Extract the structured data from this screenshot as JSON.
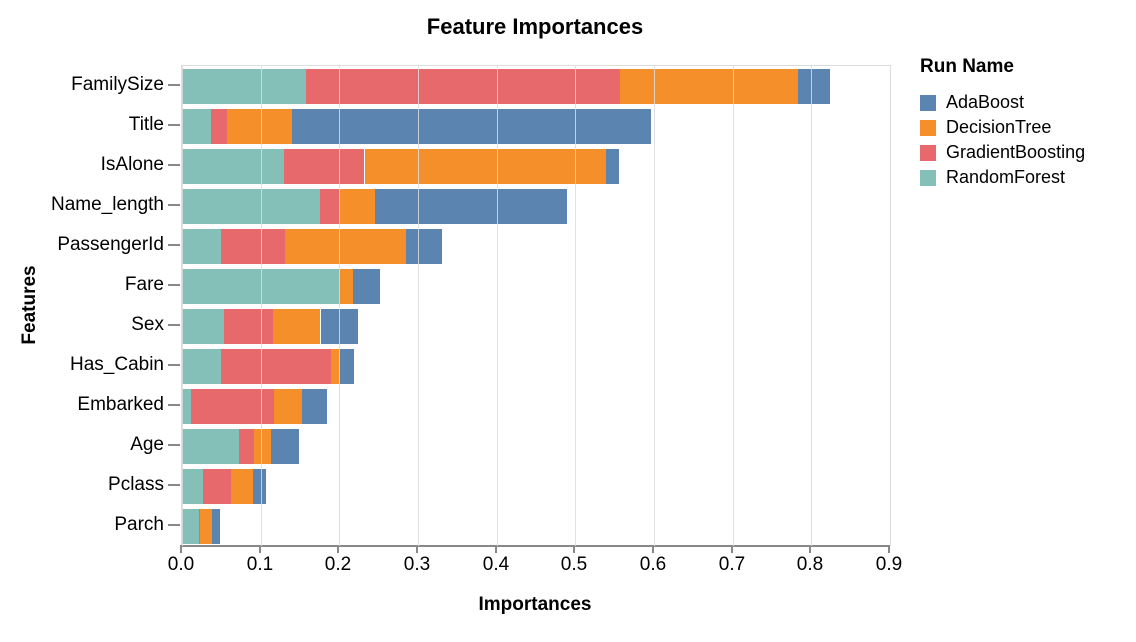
{
  "chart_data": {
    "type": "bar",
    "stacked": true,
    "orientation": "horizontal",
    "title": "Feature Importances",
    "xlabel": "Importances",
    "ylabel": "Features",
    "legend_title": "Run Name",
    "legend_position": "right",
    "grid": true,
    "xlim": [
      0,
      0.9
    ],
    "x_ticks": [
      0.0,
      0.1,
      0.2,
      0.3,
      0.4,
      0.5,
      0.6,
      0.7,
      0.8,
      0.9
    ],
    "x_tick_labels": [
      "0.0",
      "0.1",
      "0.2",
      "0.3",
      "0.4",
      "0.5",
      "0.6",
      "0.7",
      "0.8",
      "0.9"
    ],
    "categories": [
      "FamilySize",
      "Title",
      "IsAlone",
      "Name_length",
      "PassengerId",
      "Fare",
      "Sex",
      "Has_Cabin",
      "Embarked",
      "Age",
      "Pclass",
      "Parch"
    ],
    "series": [
      {
        "name": "AdaBoost",
        "color": "#5b84b1",
        "values": [
          0.04,
          0.456,
          0.017,
          0.244,
          0.046,
          0.035,
          0.047,
          0.019,
          0.031,
          0.036,
          0.017,
          0.01
        ]
      },
      {
        "name": "DecisionTree",
        "color": "#f58f2a",
        "values": [
          0.226,
          0.083,
          0.307,
          0.046,
          0.154,
          0.016,
          0.06,
          0.011,
          0.036,
          0.021,
          0.028,
          0.015
        ]
      },
      {
        "name": "GradientBoosting",
        "color": "#e8696b",
        "values": [
          0.4,
          0.02,
          0.102,
          0.024,
          0.081,
          0.0,
          0.063,
          0.14,
          0.106,
          0.02,
          0.035,
          0.002
        ]
      },
      {
        "name": "RandomForest",
        "color": "#84bfb8",
        "values": [
          0.157,
          0.037,
          0.13,
          0.175,
          0.05,
          0.201,
          0.053,
          0.049,
          0.011,
          0.072,
          0.027,
          0.021
        ]
      }
    ],
    "stack_order": [
      "RandomForest",
      "GradientBoosting",
      "DecisionTree",
      "AdaBoost"
    ],
    "axis_color": "#888888",
    "grid_color": "#dcdcdc"
  }
}
